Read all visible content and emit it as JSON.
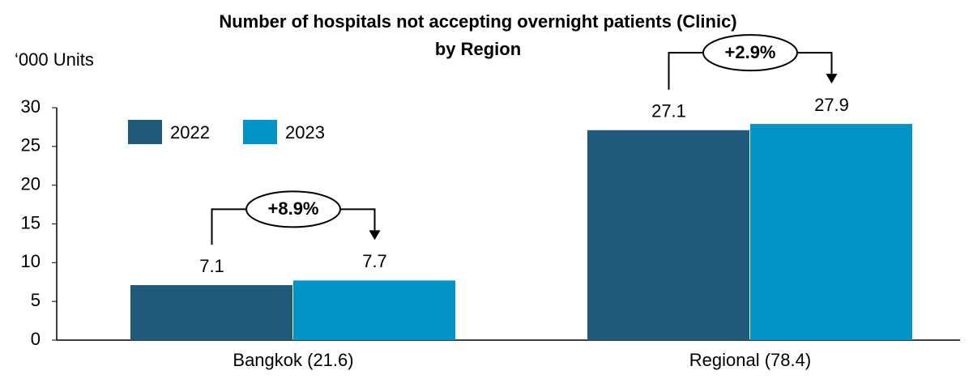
{
  "chart_data": {
    "type": "bar",
    "title": [
      "Number of hospitals not accepting overnight patients (Clinic)",
      "by Region"
    ],
    "y_label": "‘000 Units",
    "categories": [
      "Bangkok (21.6)",
      "Regional (78.4)"
    ],
    "series": [
      {
        "name": "2022",
        "color": "#1f5a7a",
        "values": [
          7.1,
          27.1
        ]
      },
      {
        "name": "2023",
        "color": "#0093c8",
        "values": [
          7.7,
          27.9
        ]
      }
    ],
    "annotations": [
      "+8.9%",
      "+2.9%"
    ],
    "ylim": [
      0,
      30
    ],
    "yticks": [
      0,
      5,
      10,
      15,
      20,
      25,
      30
    ],
    "grid": false,
    "legend": "upper left"
  }
}
